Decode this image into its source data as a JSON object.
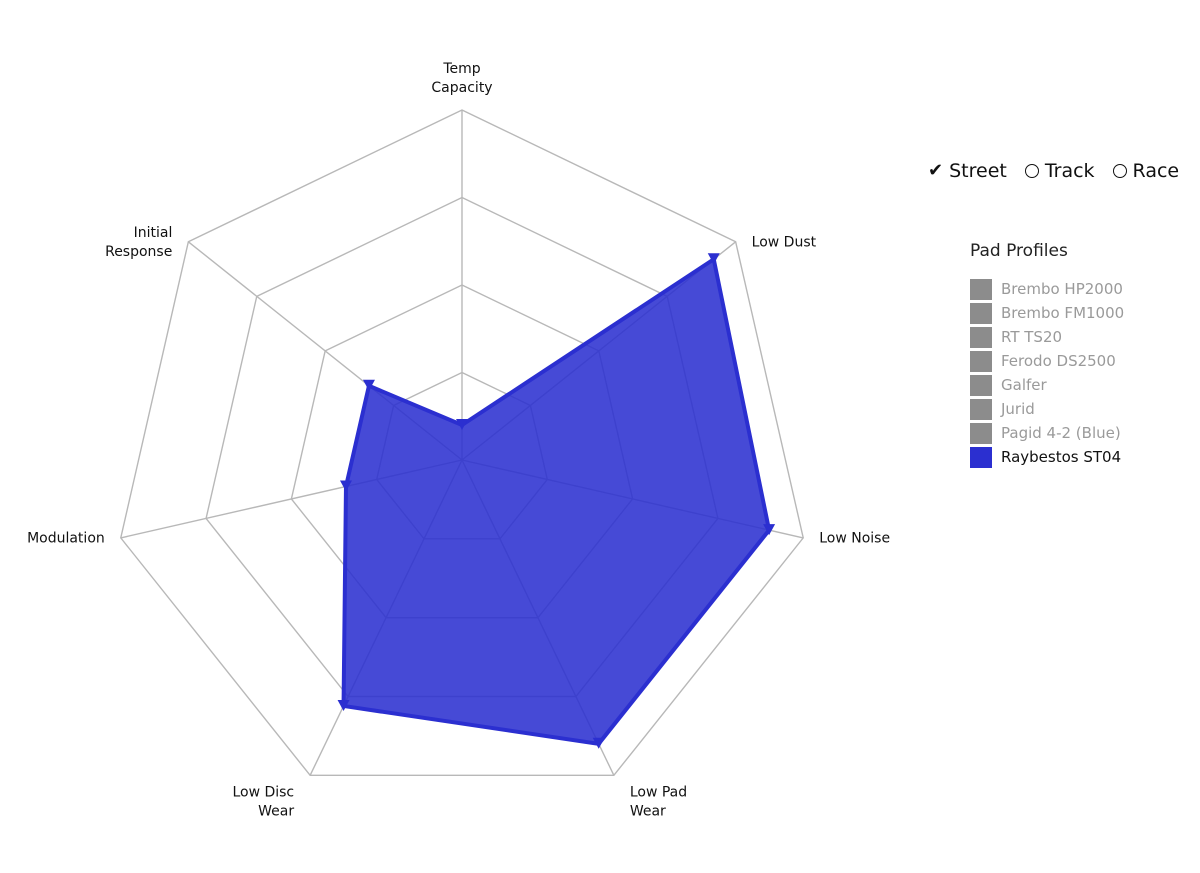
{
  "chart_data": {
    "type": "radar",
    "axes": [
      "Temp Capacity",
      "Low Dust",
      "Low Noise",
      "Low Pad Wear",
      "Low Disc Wear",
      "Modulation",
      "Initial Response"
    ],
    "axis_label_lines": [
      [
        "Temp",
        "Capacity"
      ],
      [
        "Low Dust"
      ],
      [
        "Low Noise"
      ],
      [
        "Low Pad",
        "Wear"
      ],
      [
        "Low Disc",
        "Wear"
      ],
      [
        "Modulation"
      ],
      [
        "Initial",
        "Response"
      ]
    ],
    "rmax": 5,
    "grid_levels": 4,
    "series": [
      {
        "name": "Raybestos ST04",
        "values": [
          0.5,
          4.6,
          4.5,
          4.5,
          3.9,
          1.7,
          1.7
        ],
        "color": "#2b2fd0"
      }
    ]
  },
  "mode_options": [
    {
      "label": "Street",
      "selected": true
    },
    {
      "label": "Track",
      "selected": false
    },
    {
      "label": "Race",
      "selected": false
    }
  ],
  "legend": {
    "title": "Pad Profiles",
    "items": [
      {
        "label": "Brembo HP2000",
        "active": false,
        "color": "#8c8c8c"
      },
      {
        "label": "Brembo FM1000",
        "active": false,
        "color": "#8c8c8c"
      },
      {
        "label": "RT TS20",
        "active": false,
        "color": "#8c8c8c"
      },
      {
        "label": "Ferodo DS2500",
        "active": false,
        "color": "#8c8c8c"
      },
      {
        "label": "Galfer",
        "active": false,
        "color": "#8c8c8c"
      },
      {
        "label": "Jurid",
        "active": false,
        "color": "#8c8c8c"
      },
      {
        "label": "Pagid 4-2 (Blue)",
        "active": false,
        "color": "#8c8c8c"
      },
      {
        "label": "Raybestos ST04",
        "active": true,
        "color": "#2b2fd0"
      }
    ]
  }
}
